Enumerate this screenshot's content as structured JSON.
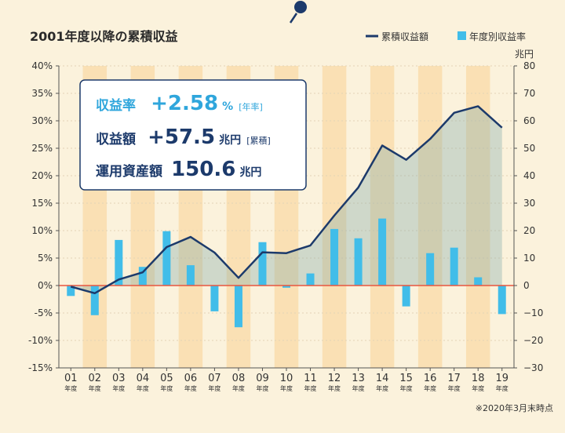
{
  "chart_data": {
    "type": "bar",
    "title": "2001年度以降の累積収益",
    "categories": [
      "01",
      "02",
      "03",
      "04",
      "05",
      "06",
      "07",
      "08",
      "09",
      "10",
      "11",
      "12",
      "13",
      "14",
      "15",
      "16",
      "17",
      "18",
      "19"
    ],
    "category_suffix": "年度",
    "series": [
      {
        "name": "累積収益額",
        "type": "line",
        "axis": "right",
        "color": "#1c3a6b",
        "values": [
          -0.4,
          -2.8,
          2.2,
          4.8,
          14.0,
          17.7,
          12.0,
          2.8,
          12.1,
          11.8,
          14.6,
          25.5,
          35.7,
          51.0,
          45.8,
          53.4,
          62.9,
          65.3,
          57.5
        ]
      },
      {
        "name": "年度別収益率",
        "type": "bar",
        "axis": "left",
        "color": "#41bde9",
        "values": [
          -1.9,
          -5.4,
          8.3,
          3.4,
          9.9,
          3.7,
          -4.7,
          -7.6,
          7.9,
          -0.4,
          2.2,
          10.3,
          8.6,
          12.2,
          -3.8,
          5.9,
          6.9,
          1.5,
          -5.2
        ]
      }
    ],
    "y_left": {
      "ticks": [
        "40%",
        "35%",
        "30%",
        "25%",
        "20%",
        "15%",
        "10%",
        "5%",
        "0%",
        "-5%",
        "-10%",
        "-15%"
      ],
      "ylim": [
        -15,
        40
      ]
    },
    "y_right": {
      "unit": "兆円",
      "ticks": [
        "80",
        "70",
        "60",
        "50",
        "40",
        "30",
        "20",
        "10",
        "0",
        "−10",
        "−20",
        "−30"
      ],
      "ylim": [
        -30,
        80
      ]
    },
    "legend_position": "top-right",
    "note": "※2020年3月末時点"
  },
  "summary": {
    "rate_label": "収益率",
    "rate_value": "+2.58",
    "rate_unit": "%",
    "rate_bracket": "[年率]",
    "amount_label": "収益額",
    "amount_value": "+57.5",
    "amount_unit": "兆円",
    "amount_bracket": "[累積]",
    "assets_label": "運用資産額",
    "assets_value": "150.6",
    "assets_unit": "兆円"
  },
  "colors": {
    "navy": "#1c3a6b",
    "cyan": "#41bde9",
    "stripe": "#fae0b4",
    "zero_line": "#e8563f",
    "pin": "#1c3a6b",
    "accent": "#2fa6dc"
  }
}
